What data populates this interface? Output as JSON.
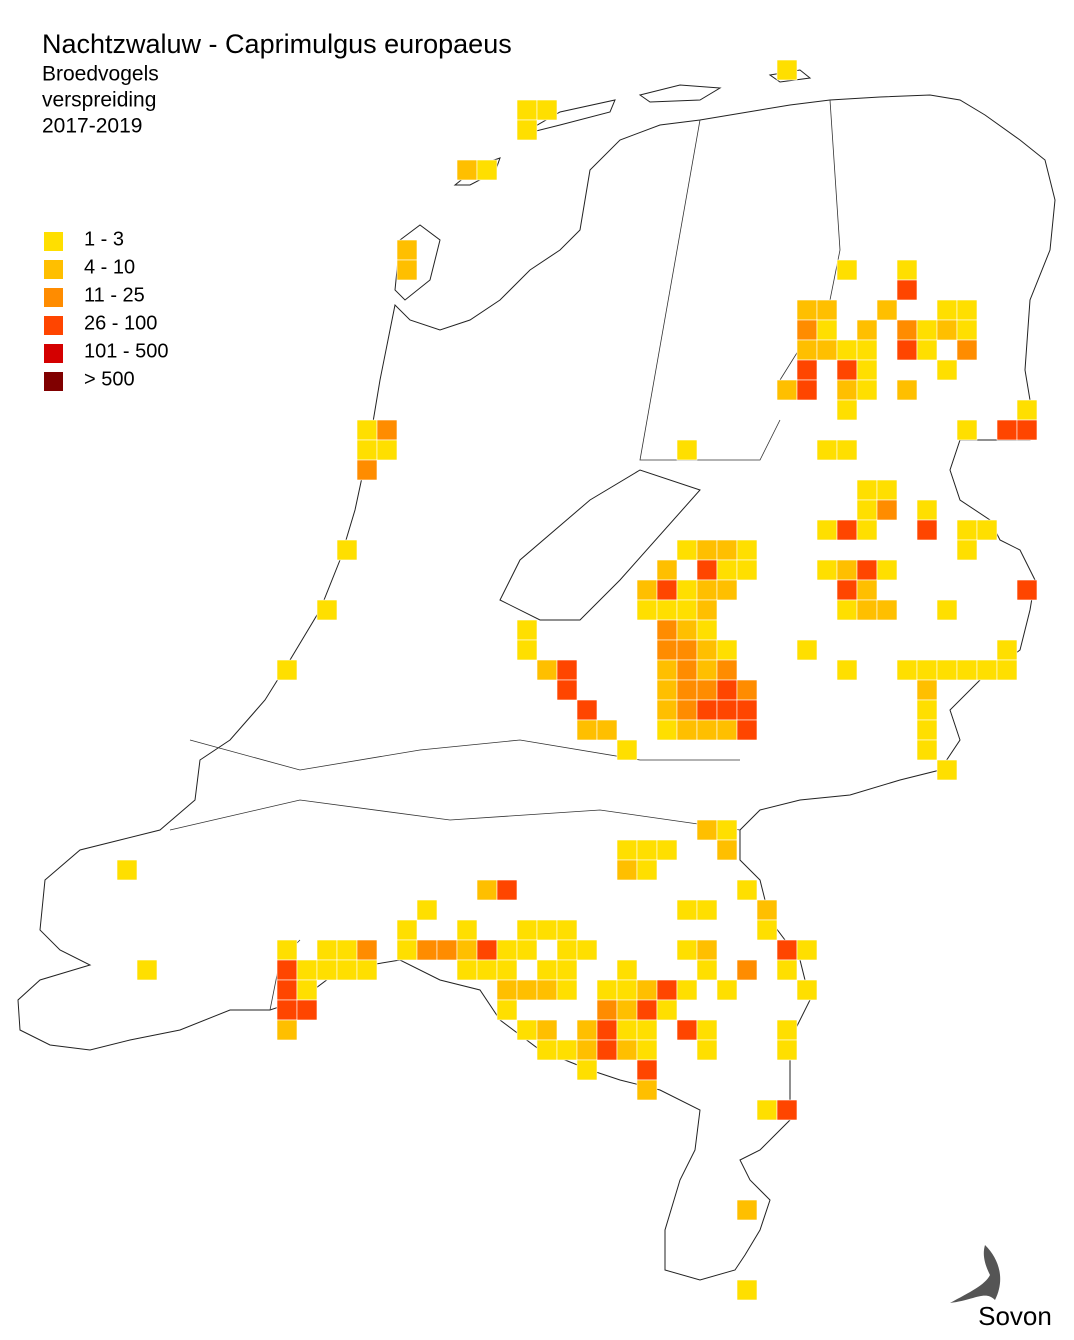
{
  "title": "Nachtzwaluw - Caprimulgus europaeus",
  "subtitle_lines": [
    "Broedvogels",
    "verspreiding",
    "2017-2019"
  ],
  "legend": [
    {
      "label": "1 - 3",
      "color": "#ffdf00"
    },
    {
      "label": "4 - 10",
      "color": "#ffbf00"
    },
    {
      "label": "11 - 25",
      "color": "#ff8c00"
    },
    {
      "label": "26 - 100",
      "color": "#ff4500"
    },
    {
      "label": "101 - 500",
      "color": "#d40000"
    },
    {
      "label": "> 500",
      "color": "#800000"
    }
  ],
  "logo": "Sovon",
  "cells": [
    [
      38,
      3,
      0
    ],
    [
      25,
      5,
      0
    ],
    [
      26,
      5,
      0
    ],
    [
      25,
      6,
      0
    ],
    [
      22,
      8,
      1
    ],
    [
      23,
      8,
      0
    ],
    [
      19,
      12,
      1
    ],
    [
      19,
      13,
      1
    ],
    [
      17,
      21,
      0
    ],
    [
      18,
      21,
      2
    ],
    [
      17,
      22,
      0
    ],
    [
      18,
      22,
      0
    ],
    [
      17,
      23,
      2
    ],
    [
      16,
      27,
      0
    ],
    [
      15,
      30,
      0
    ],
    [
      13,
      33,
      0
    ],
    [
      41,
      13,
      0
    ],
    [
      44,
      13,
      0
    ],
    [
      44,
      14,
      3
    ],
    [
      39,
      15,
      1
    ],
    [
      40,
      15,
      1
    ],
    [
      43,
      15,
      1
    ],
    [
      46,
      15,
      0
    ],
    [
      47,
      15,
      0
    ],
    [
      39,
      16,
      2
    ],
    [
      40,
      16,
      0
    ],
    [
      42,
      16,
      1
    ],
    [
      44,
      16,
      2
    ],
    [
      45,
      16,
      0
    ],
    [
      46,
      16,
      1
    ],
    [
      47,
      16,
      0
    ],
    [
      39,
      17,
      1
    ],
    [
      40,
      17,
      1
    ],
    [
      41,
      17,
      0
    ],
    [
      42,
      17,
      0
    ],
    [
      44,
      17,
      3
    ],
    [
      45,
      17,
      0
    ],
    [
      47,
      17,
      2
    ],
    [
      39,
      18,
      3
    ],
    [
      41,
      18,
      3
    ],
    [
      42,
      18,
      0
    ],
    [
      46,
      18,
      0
    ],
    [
      38,
      19,
      1
    ],
    [
      39,
      19,
      3
    ],
    [
      41,
      19,
      1
    ],
    [
      42,
      19,
      0
    ],
    [
      44,
      19,
      1
    ],
    [
      41,
      20,
      0
    ],
    [
      50,
      20,
      0
    ],
    [
      47,
      21,
      0
    ],
    [
      49,
      21,
      3
    ],
    [
      50,
      21,
      3
    ],
    [
      40,
      22,
      0
    ],
    [
      41,
      22,
      0
    ],
    [
      33,
      22,
      0
    ],
    [
      42,
      24,
      0
    ],
    [
      43,
      24,
      0
    ],
    [
      42,
      25,
      0
    ],
    [
      43,
      25,
      2
    ],
    [
      45,
      25,
      0
    ],
    [
      40,
      26,
      0
    ],
    [
      41,
      26,
      3
    ],
    [
      42,
      26,
      0
    ],
    [
      45,
      26,
      3
    ],
    [
      47,
      26,
      0
    ],
    [
      48,
      26,
      0
    ],
    [
      33,
      27,
      0
    ],
    [
      34,
      27,
      1
    ],
    [
      35,
      27,
      1
    ],
    [
      36,
      27,
      0
    ],
    [
      47,
      27,
      0
    ],
    [
      32,
      28,
      1
    ],
    [
      34,
      28,
      3
    ],
    [
      35,
      28,
      0
    ],
    [
      36,
      28,
      0
    ],
    [
      40,
      28,
      0
    ],
    [
      41,
      28,
      1
    ],
    [
      42,
      28,
      3
    ],
    [
      43,
      28,
      0
    ],
    [
      31,
      29,
      1
    ],
    [
      32,
      29,
      3
    ],
    [
      33,
      29,
      0
    ],
    [
      34,
      29,
      1
    ],
    [
      35,
      29,
      1
    ],
    [
      41,
      29,
      3
    ],
    [
      42,
      29,
      1
    ],
    [
      50,
      29,
      3
    ],
    [
      31,
      30,
      0
    ],
    [
      32,
      30,
      0
    ],
    [
      33,
      30,
      0
    ],
    [
      34,
      30,
      1
    ],
    [
      41,
      30,
      0
    ],
    [
      42,
      30,
      1
    ],
    [
      43,
      30,
      1
    ],
    [
      46,
      30,
      0
    ],
    [
      25,
      31,
      0
    ],
    [
      32,
      31,
      2
    ],
    [
      33,
      31,
      1
    ],
    [
      34,
      31,
      0
    ],
    [
      25,
      32,
      0
    ],
    [
      32,
      32,
      2
    ],
    [
      33,
      32,
      2
    ],
    [
      34,
      32,
      1
    ],
    [
      35,
      32,
      0
    ],
    [
      39,
      32,
      0
    ],
    [
      49,
      32,
      0
    ],
    [
      26,
      33,
      1
    ],
    [
      27,
      33,
      3
    ],
    [
      32,
      33,
      1
    ],
    [
      33,
      33,
      2
    ],
    [
      34,
      33,
      1
    ],
    [
      35,
      33,
      2
    ],
    [
      41,
      33,
      0
    ],
    [
      44,
      33,
      0
    ],
    [
      45,
      33,
      0
    ],
    [
      46,
      33,
      0
    ],
    [
      47,
      33,
      0
    ],
    [
      48,
      33,
      0
    ],
    [
      49,
      33,
      0
    ],
    [
      27,
      34,
      3
    ],
    [
      32,
      34,
      1
    ],
    [
      33,
      34,
      2
    ],
    [
      34,
      34,
      2
    ],
    [
      35,
      34,
      3
    ],
    [
      36,
      34,
      2
    ],
    [
      45,
      34,
      1
    ],
    [
      28,
      35,
      3
    ],
    [
      32,
      35,
      1
    ],
    [
      33,
      35,
      2
    ],
    [
      34,
      35,
      3
    ],
    [
      35,
      35,
      3
    ],
    [
      36,
      35,
      3
    ],
    [
      45,
      35,
      0
    ],
    [
      28,
      36,
      1
    ],
    [
      29,
      36,
      1
    ],
    [
      32,
      36,
      0
    ],
    [
      33,
      36,
      1
    ],
    [
      34,
      36,
      1
    ],
    [
      35,
      36,
      1
    ],
    [
      36,
      36,
      3
    ],
    [
      45,
      36,
      0
    ],
    [
      30,
      37,
      0
    ],
    [
      45,
      37,
      0
    ],
    [
      46,
      38,
      0
    ],
    [
      34,
      41,
      1
    ],
    [
      35,
      41,
      0
    ],
    [
      30,
      42,
      0
    ],
    [
      31,
      42,
      0
    ],
    [
      32,
      42,
      0
    ],
    [
      35,
      42,
      1
    ],
    [
      5,
      43,
      0
    ],
    [
      30,
      43,
      1
    ],
    [
      31,
      43,
      0
    ],
    [
      23,
      44,
      1
    ],
    [
      24,
      44,
      3
    ],
    [
      36,
      44,
      0
    ],
    [
      20,
      45,
      0
    ],
    [
      33,
      45,
      0
    ],
    [
      34,
      45,
      0
    ],
    [
      37,
      45,
      1
    ],
    [
      19,
      46,
      0
    ],
    [
      22,
      46,
      0
    ],
    [
      25,
      46,
      0
    ],
    [
      26,
      46,
      0
    ],
    [
      27,
      46,
      0
    ],
    [
      37,
      46,
      0
    ],
    [
      13,
      47,
      0
    ],
    [
      15,
      47,
      0
    ],
    [
      16,
      47,
      0
    ],
    [
      17,
      47,
      2
    ],
    [
      19,
      47,
      0
    ],
    [
      20,
      47,
      2
    ],
    [
      21,
      47,
      2
    ],
    [
      22,
      47,
      1
    ],
    [
      23,
      47,
      3
    ],
    [
      24,
      47,
      0
    ],
    [
      25,
      47,
      0
    ],
    [
      27,
      47,
      0
    ],
    [
      28,
      47,
      0
    ],
    [
      33,
      47,
      0
    ],
    [
      34,
      47,
      1
    ],
    [
      38,
      47,
      3
    ],
    [
      39,
      47,
      0
    ],
    [
      6,
      48,
      0
    ],
    [
      13,
      48,
      3
    ],
    [
      14,
      48,
      0
    ],
    [
      15,
      48,
      0
    ],
    [
      16,
      48,
      0
    ],
    [
      17,
      48,
      0
    ],
    [
      22,
      48,
      0
    ],
    [
      23,
      48,
      0
    ],
    [
      24,
      48,
      0
    ],
    [
      26,
      48,
      0
    ],
    [
      27,
      48,
      0
    ],
    [
      30,
      48,
      0
    ],
    [
      34,
      48,
      0
    ],
    [
      36,
      48,
      2
    ],
    [
      38,
      48,
      0
    ],
    [
      13,
      49,
      3
    ],
    [
      14,
      49,
      0
    ],
    [
      24,
      49,
      1
    ],
    [
      25,
      49,
      1
    ],
    [
      26,
      49,
      1
    ],
    [
      27,
      49,
      0
    ],
    [
      29,
      49,
      0
    ],
    [
      30,
      49,
      0
    ],
    [
      31,
      49,
      1
    ],
    [
      32,
      49,
      3
    ],
    [
      33,
      49,
      0
    ],
    [
      35,
      49,
      0
    ],
    [
      39,
      49,
      0
    ],
    [
      13,
      50,
      3
    ],
    [
      14,
      50,
      3
    ],
    [
      24,
      50,
      0
    ],
    [
      29,
      50,
      2
    ],
    [
      30,
      50,
      1
    ],
    [
      31,
      50,
      3
    ],
    [
      32,
      50,
      0
    ],
    [
      13,
      51,
      1
    ],
    [
      25,
      51,
      0
    ],
    [
      26,
      51,
      1
    ],
    [
      28,
      51,
      1
    ],
    [
      29,
      51,
      3
    ],
    [
      30,
      51,
      0
    ],
    [
      31,
      51,
      0
    ],
    [
      33,
      51,
      3
    ],
    [
      34,
      51,
      0
    ],
    [
      38,
      51,
      0
    ],
    [
      26,
      52,
      0
    ],
    [
      27,
      52,
      0
    ],
    [
      28,
      52,
      1
    ],
    [
      29,
      52,
      3
    ],
    [
      30,
      52,
      1
    ],
    [
      31,
      52,
      0
    ],
    [
      34,
      52,
      0
    ],
    [
      38,
      52,
      0
    ],
    [
      28,
      53,
      0
    ],
    [
      31,
      53,
      3
    ],
    [
      31,
      54,
      1
    ],
    [
      37,
      55,
      0
    ],
    [
      38,
      55,
      3
    ],
    [
      36,
      60,
      1
    ],
    [
      36,
      64,
      0
    ]
  ]
}
